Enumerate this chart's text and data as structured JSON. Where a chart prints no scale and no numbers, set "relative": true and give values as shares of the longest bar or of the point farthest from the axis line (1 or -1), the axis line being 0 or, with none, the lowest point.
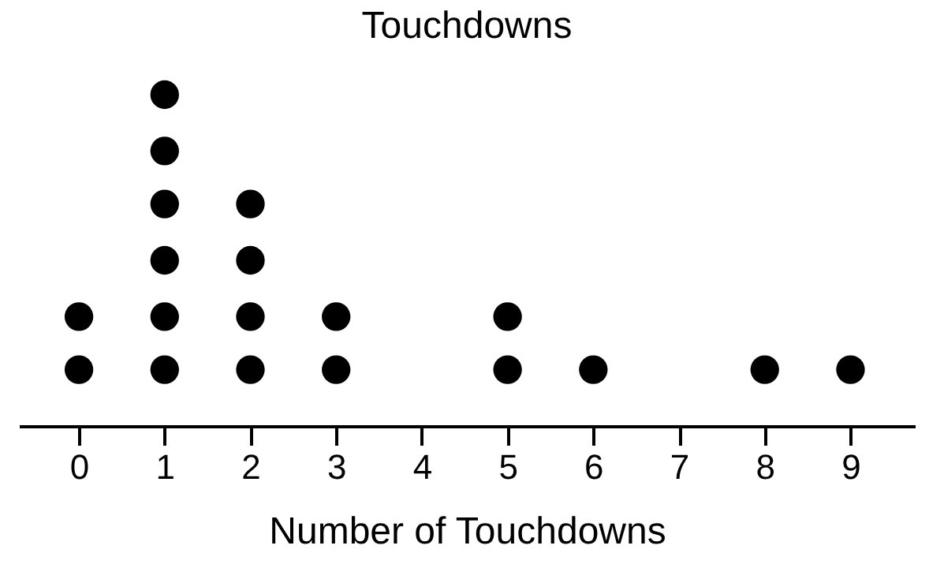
{
  "chart_data": {
    "type": "scatter",
    "title": "Touchdowns",
    "xlabel": "Number of Touchdowns",
    "relative": true,
    "marker": "circle",
    "xlim": [
      -0.7,
      9.75
    ],
    "xticks": [
      0,
      1,
      2,
      3,
      4,
      5,
      6,
      7,
      8,
      9
    ],
    "series": [
      {
        "color": "#000000",
        "x": [
          0,
          0,
          1,
          1,
          1,
          1,
          1,
          1,
          2,
          2,
          2,
          2,
          3,
          3,
          5,
          5,
          6,
          8,
          9
        ],
        "values": [
          0.17,
          0.33,
          0.17,
          0.33,
          0.5,
          0.67,
          0.83,
          1,
          0.17,
          0.33,
          0.5,
          0.67,
          0.17,
          0.33,
          0.17,
          0.33,
          0.17,
          0.17,
          0.17
        ]
      }
    ]
  }
}
